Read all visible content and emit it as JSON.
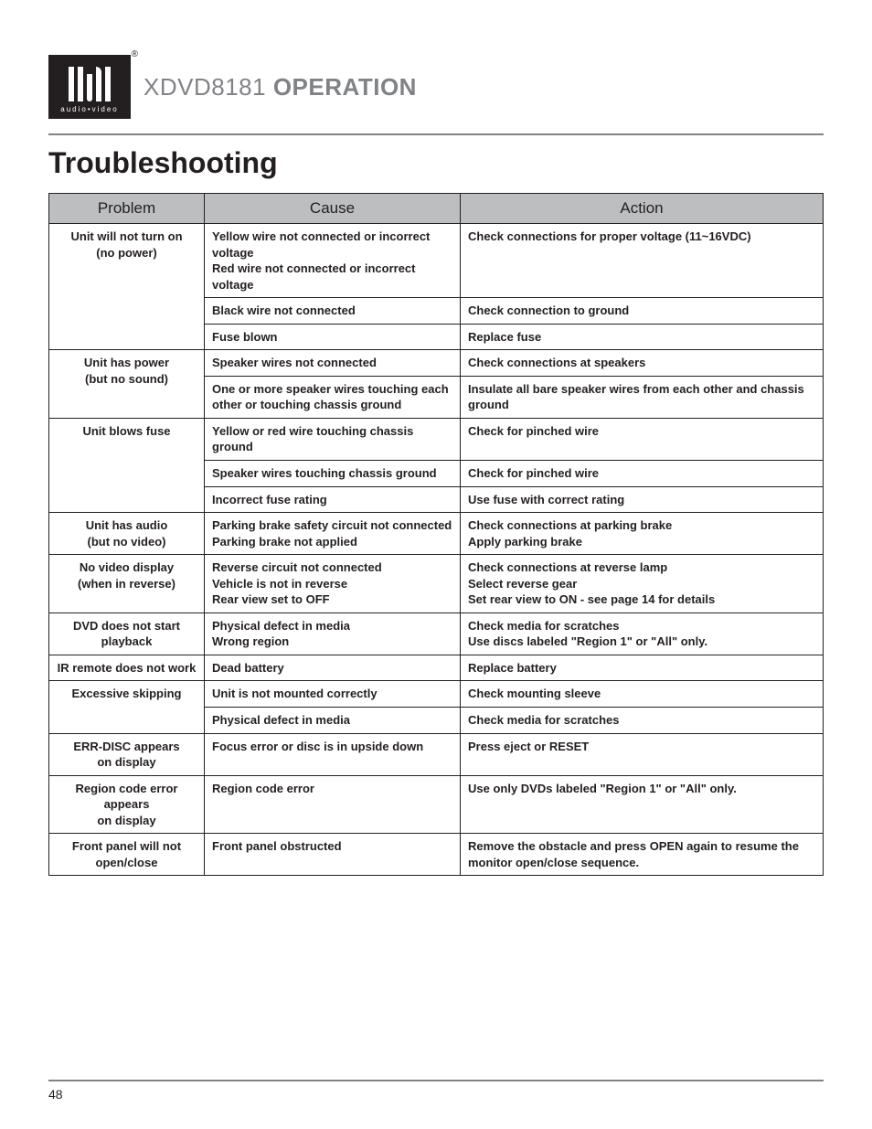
{
  "logo": {
    "tagline": "audio•video",
    "registered": "®"
  },
  "doc_title": {
    "model": "XDVD8181",
    "operation": "OPERATION"
  },
  "section_title": "Troubleshooting",
  "table": {
    "headers": {
      "problem": "Problem",
      "cause": "Cause",
      "action": "Action"
    },
    "groups": [
      {
        "problem": "Unit will not turn on\n(no power)",
        "rows": [
          {
            "cause": "Yellow wire not connected or incorrect voltage\nRed wire not connected or incorrect voltage",
            "action": "Check connections for proper voltage (11~16VDC)"
          },
          {
            "cause": "Black wire not connected",
            "action": "Check connection to ground"
          },
          {
            "cause": "Fuse blown",
            "action": "Replace fuse"
          }
        ]
      },
      {
        "problem": "Unit has power\n(but no sound)",
        "rows": [
          {
            "cause": "Speaker wires not connected",
            "action": "Check connections at speakers"
          },
          {
            "cause": "One or more speaker wires touching each other or touching chassis ground",
            "action": "Insulate all bare speaker wires from each other and chassis ground"
          }
        ]
      },
      {
        "problem": "Unit blows fuse",
        "rows": [
          {
            "cause": "Yellow or red wire touching chassis ground",
            "action": "Check for pinched wire"
          },
          {
            "cause": "Speaker wires touching chassis ground",
            "action": "Check for pinched wire"
          },
          {
            "cause": "Incorrect fuse rating",
            "action": "Use fuse with correct rating"
          }
        ]
      },
      {
        "problem": "Unit has audio\n(but no video)",
        "rows": [
          {
            "cause": "Parking brake safety circuit not connected\nParking brake not applied",
            "action": "Check connections at parking brake\nApply parking brake"
          }
        ]
      },
      {
        "problem": "No video display\n(when in reverse)",
        "rows": [
          {
            "cause": "Reverse circuit not connected\nVehicle is not in reverse\nRear view set to OFF",
            "action": "Check connections at reverse lamp\nSelect reverse gear\nSet rear view to ON - see page 14 for details"
          }
        ]
      },
      {
        "problem": "DVD does not start playback",
        "rows": [
          {
            "cause": "Physical defect in media\nWrong region",
            "action": "Check media for scratches\nUse discs labeled \"Region 1\" or \"All\" only."
          }
        ]
      },
      {
        "problem": "IR remote does not work",
        "rows": [
          {
            "cause": "Dead battery",
            "action": "Replace battery"
          }
        ]
      },
      {
        "problem": "Excessive skipping",
        "rows": [
          {
            "cause": "Unit is not mounted correctly",
            "action": "Check mounting sleeve"
          },
          {
            "cause": "Physical defect in media",
            "action": "Check media for scratches"
          }
        ]
      },
      {
        "problem": "ERR-DISC appears\non display",
        "rows": [
          {
            "cause": "Focus error or disc is in upside down",
            "action": "Press eject or RESET"
          }
        ]
      },
      {
        "problem": "Region code error appears\non display",
        "rows": [
          {
            "cause": "Region code error",
            "action": "Use only DVDs labeled \"Region 1\" or \"All\" only."
          }
        ]
      },
      {
        "problem": "Front panel will not\nopen/close",
        "rows": [
          {
            "cause": "Front panel obstructed",
            "action_pre": "Remove the obstacle and press ",
            "action_bold": "OPEN",
            "action_post": " again to resume the monitor open/close sequence."
          }
        ]
      }
    ]
  },
  "page_number": "48",
  "colors": {
    "header_bg": "#bcbec0",
    "rule": "#808285",
    "text": "#231f20",
    "logo_bg": "#231f20"
  },
  "fonts": {
    "title_size_pt": 24,
    "section_size_pt": 24,
    "body_size_pt": 10
  }
}
